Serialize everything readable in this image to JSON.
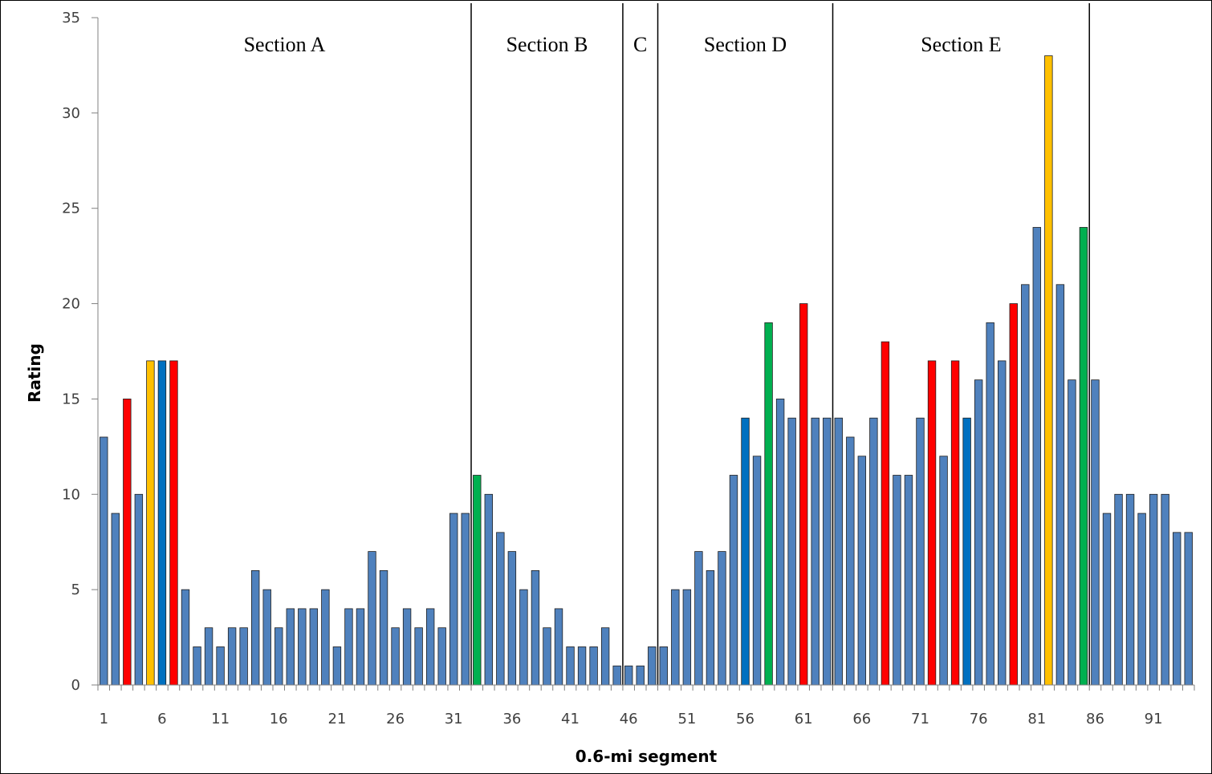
{
  "chart_data": {
    "type": "bar",
    "xlabel": "0.6-mi segment",
    "ylabel": "Rating",
    "ylim": [
      0,
      35
    ],
    "yticks": [
      0,
      5,
      10,
      15,
      20,
      25,
      30,
      35
    ],
    "xtick_labels": [
      "1",
      "6",
      "11",
      "16",
      "21",
      "26",
      "31",
      "36",
      "41",
      "46",
      "51",
      "56",
      "61",
      "66",
      "71",
      "76",
      "81",
      "86",
      "91"
    ],
    "grid": false,
    "colors": {
      "default": "#4f81bd",
      "red": "#ff0000",
      "orange": "#ffc000",
      "dark_blue": "#0070c0",
      "green": "#00b050"
    },
    "values": [
      13,
      9,
      15,
      10,
      17,
      17,
      17,
      5,
      2,
      3,
      2,
      3,
      3,
      6,
      5,
      3,
      4,
      4,
      4,
      5,
      2,
      4,
      4,
      7,
      6,
      3,
      4,
      3,
      4,
      3,
      9,
      9,
      11,
      10,
      8,
      7,
      5,
      6,
      3,
      4,
      2,
      2,
      2,
      3,
      1,
      1,
      1,
      2,
      2,
      5,
      5,
      7,
      6,
      7,
      11,
      14,
      12,
      19,
      15,
      14,
      20,
      14,
      14,
      14,
      13,
      12,
      14,
      18,
      11,
      11,
      14,
      17,
      12,
      17,
      14,
      16,
      19,
      17,
      20,
      21,
      24,
      33,
      21,
      16,
      24,
      16,
      9,
      10,
      10,
      9,
      10,
      10,
      8,
      8
    ],
    "highlights": {
      "red": [
        3,
        7,
        61,
        68,
        72,
        74,
        79
      ],
      "orange": [
        5,
        82
      ],
      "dark_blue": [
        6,
        56,
        75
      ],
      "green": [
        33,
        58,
        85
      ]
    },
    "sections": [
      {
        "label": "Section A",
        "start": 1,
        "end": 32
      },
      {
        "label": "Section B",
        "start": 33,
        "end": 45
      },
      {
        "label": "C",
        "start": 46,
        "end": 48
      },
      {
        "label": "Section D",
        "start": 49,
        "end": 63
      },
      {
        "label": "Section E",
        "start": 64,
        "end": 85
      }
    ]
  }
}
